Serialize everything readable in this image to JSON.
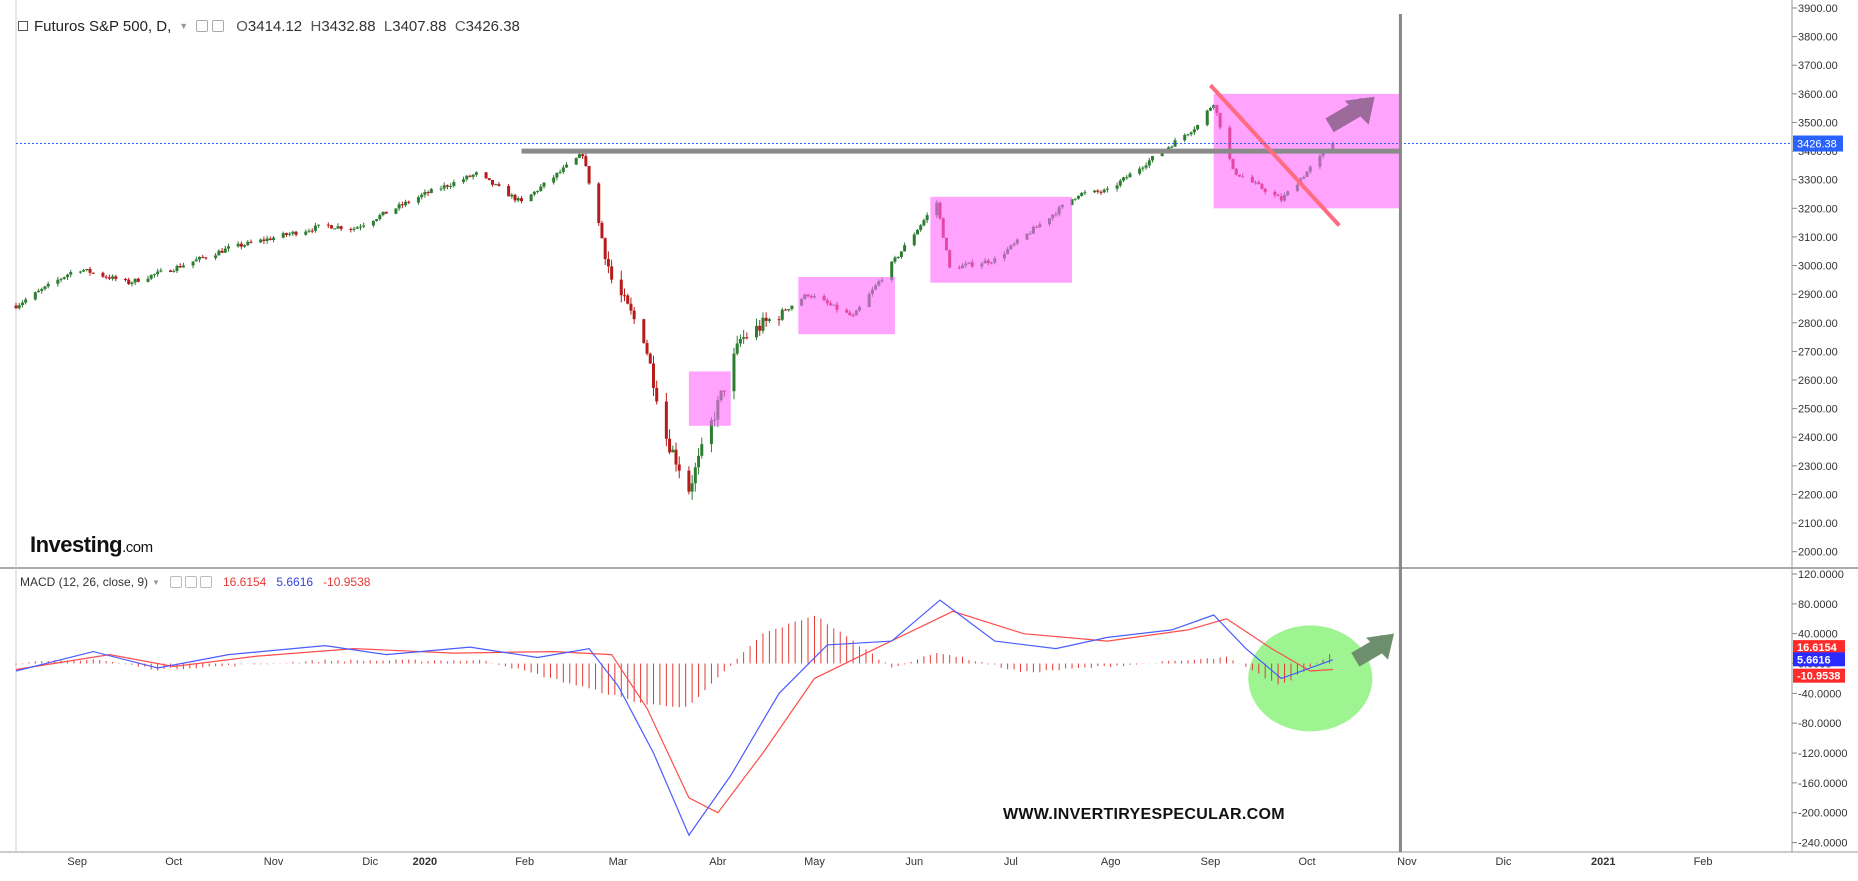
{
  "header": {
    "symbol": "Futuros S&P 500, D,",
    "open_label": "O",
    "open": "3414.12",
    "high_label": "H",
    "high": "3432.88",
    "low_label": "L",
    "low": "3407.88",
    "close_label": "C",
    "close": "3426.38"
  },
  "macd_header": {
    "label": "MACD (12, 26, close, 9)",
    "value_red": "16.6154",
    "value_blue": "5.6616",
    "value_red2": "-10.9538"
  },
  "brand": {
    "name": "Investing",
    "domain": ".com"
  },
  "watermark": "WWW.INVERTIRYESPECULAR.COM",
  "colors": {
    "up": "#2e7d32",
    "down": "#b71c1c",
    "macd_line": "#4a5cff",
    "signal_line": "#ff4d4d",
    "histogram": "#e53935",
    "price_tag": "#2962ff",
    "box": "#ff66ff",
    "trendline": "#ff6b81",
    "arrow": "#9c6b9c",
    "circle": "#7cf06b"
  },
  "chart_data": [
    {
      "type": "candlestick",
      "title": "",
      "ylim": [
        1950,
        3900
      ],
      "yticks": [
        "3900.00",
        "3800.00",
        "3700.00",
        "3600.00",
        "3500.00",
        "3400.00",
        "3300.00",
        "3200.00",
        "3100.00",
        "3000.00",
        "2900.00",
        "2800.00",
        "2700.00",
        "2600.00",
        "2500.00",
        "2400.00",
        "2300.00",
        "2200.00",
        "2100.00",
        "2000.00"
      ],
      "last_price_tag": "3426.38",
      "resistance_level": 3400,
      "x_months": [
        "Sep",
        "Oct",
        "Nov",
        "Dic",
        "2020",
        "Feb",
        "Mar",
        "Abr",
        "May",
        "Jun",
        "Jul",
        "Ago",
        "Sep",
        "Oct",
        "Nov",
        "Dic",
        "2021",
        "Feb"
      ],
      "closing_path": [
        {
          "x": "2019-08-27",
          "y": 2860
        },
        {
          "x": "2019-09-15",
          "y": 2990
        },
        {
          "x": "2019-10-01",
          "y": 2940
        },
        {
          "x": "2019-10-15",
          "y": 2990
        },
        {
          "x": "2019-11-01",
          "y": 3060
        },
        {
          "x": "2019-12-01",
          "y": 3140
        },
        {
          "x": "2019-12-10",
          "y": 3130
        },
        {
          "x": "2020-01-01",
          "y": 3250
        },
        {
          "x": "2020-01-17",
          "y": 3320
        },
        {
          "x": "2020-01-31",
          "y": 3220
        },
        {
          "x": "2020-02-19",
          "y": 3390
        },
        {
          "x": "2020-02-28",
          "y": 2950
        },
        {
          "x": "2020-03-09",
          "y": 2750
        },
        {
          "x": "2020-03-16",
          "y": 2400
        },
        {
          "x": "2020-03-23",
          "y": 2220
        },
        {
          "x": "2020-04-08",
          "y": 2740
        },
        {
          "x": "2020-04-29",
          "y": 2900
        },
        {
          "x": "2020-05-13",
          "y": 2820
        },
        {
          "x": "2020-06-08",
          "y": 3220
        },
        {
          "x": "2020-06-12",
          "y": 2990
        },
        {
          "x": "2020-06-26",
          "y": 3020
        },
        {
          "x": "2020-07-22",
          "y": 3250
        },
        {
          "x": "2020-07-31",
          "y": 3260
        },
        {
          "x": "2020-08-28",
          "y": 3490
        },
        {
          "x": "2020-09-02",
          "y": 3570
        },
        {
          "x": "2020-09-08",
          "y": 3330
        },
        {
          "x": "2020-09-23",
          "y": 3230
        },
        {
          "x": "2020-10-09",
          "y": 3426
        }
      ],
      "annotations": {
        "boxes": [
          {
            "from": "2020-03-23",
            "to": "2020-04-05",
            "low": 2440,
            "high": 2630
          },
          {
            "from": "2020-04-26",
            "to": "2020-05-26",
            "low": 2760,
            "high": 2960
          },
          {
            "from": "2020-06-06",
            "to": "2020-07-20",
            "low": 2940,
            "high": 3240
          },
          {
            "from": "2020-09-02",
            "to": "2020-10-30",
            "low": 3200,
            "high": 3600
          }
        ],
        "resistance_line": {
          "from": "2020-01-31",
          "to": "2020-10-30",
          "y": 3400
        },
        "trendline": {
          "from": "2020-09-01",
          "y1": 3630,
          "to": "2020-10-11",
          "y2": 3140
        },
        "arrow": {
          "from": "2020-10-08",
          "y1": 3490,
          "to": "2020-10-22",
          "y2": 3590
        },
        "vertical_line": {
          "x": "2020-10-30"
        }
      }
    },
    {
      "type": "line",
      "title": "MACD (12, 26, close, 9)",
      "ylim": [
        -250,
        120
      ],
      "yticks": [
        "120.0000",
        "80.0000",
        "40.0000",
        "0.0000",
        "-40.0000",
        "-80.0000",
        "-120.0000",
        "-160.0000",
        "-200.0000",
        "-240.0000"
      ],
      "series": [
        {
          "name": "MACD",
          "points": [
            {
              "x": "2019-08-27",
              "y": -10
            },
            {
              "x": "2019-09-20",
              "y": 16
            },
            {
              "x": "2019-10-10",
              "y": -6
            },
            {
              "x": "2019-11-01",
              "y": 12
            },
            {
              "x": "2019-12-01",
              "y": 24
            },
            {
              "x": "2019-12-20",
              "y": 12
            },
            {
              "x": "2020-01-15",
              "y": 22
            },
            {
              "x": "2020-02-05",
              "y": 8
            },
            {
              "x": "2020-02-21",
              "y": 20
            },
            {
              "x": "2020-03-01",
              "y": -30
            },
            {
              "x": "2020-03-12",
              "y": -120
            },
            {
              "x": "2020-03-23",
              "y": -230
            },
            {
              "x": "2020-04-05",
              "y": -150
            },
            {
              "x": "2020-04-20",
              "y": -40
            },
            {
              "x": "2020-05-05",
              "y": 25
            },
            {
              "x": "2020-05-25",
              "y": 30
            },
            {
              "x": "2020-06-09",
              "y": 85
            },
            {
              "x": "2020-06-26",
              "y": 30
            },
            {
              "x": "2020-07-15",
              "y": 20
            },
            {
              "x": "2020-07-31",
              "y": 35
            },
            {
              "x": "2020-08-20",
              "y": 45
            },
            {
              "x": "2020-09-02",
              "y": 65
            },
            {
              "x": "2020-09-12",
              "y": 20
            },
            {
              "x": "2020-09-23",
              "y": -20
            },
            {
              "x": "2020-10-09",
              "y": 5
            }
          ]
        },
        {
          "name": "Signal",
          "points": [
            {
              "x": "2019-08-27",
              "y": -8
            },
            {
              "x": "2019-09-25",
              "y": 12
            },
            {
              "x": "2019-10-15",
              "y": -4
            },
            {
              "x": "2019-11-10",
              "y": 10
            },
            {
              "x": "2019-12-10",
              "y": 20
            },
            {
              "x": "2020-01-10",
              "y": 14
            },
            {
              "x": "2020-02-10",
              "y": 16
            },
            {
              "x": "2020-02-28",
              "y": 12
            },
            {
              "x": "2020-03-10",
              "y": -60
            },
            {
              "x": "2020-03-23",
              "y": -180
            },
            {
              "x": "2020-04-01",
              "y": -200
            },
            {
              "x": "2020-04-15",
              "y": -120
            },
            {
              "x": "2020-05-01",
              "y": -20
            },
            {
              "x": "2020-05-20",
              "y": 20
            },
            {
              "x": "2020-06-13",
              "y": 70
            },
            {
              "x": "2020-07-05",
              "y": 40
            },
            {
              "x": "2020-07-31",
              "y": 30
            },
            {
              "x": "2020-08-25",
              "y": 45
            },
            {
              "x": "2020-09-06",
              "y": 60
            },
            {
              "x": "2020-09-20",
              "y": 20
            },
            {
              "x": "2020-10-02",
              "y": -10
            },
            {
              "x": "2020-10-09",
              "y": -8
            }
          ]
        }
      ],
      "histogram": [
        {
          "x": "2019-09-20",
          "y": 6
        },
        {
          "x": "2019-10-10",
          "y": -8
        },
        {
          "x": "2019-12-01",
          "y": 4
        },
        {
          "x": "2020-01-20",
          "y": 4
        },
        {
          "x": "2020-03-10",
          "y": -55
        },
        {
          "x": "2020-03-23",
          "y": -58
        },
        {
          "x": "2020-04-15",
          "y": 40
        },
        {
          "x": "2020-05-01",
          "y": 65
        },
        {
          "x": "2020-05-25",
          "y": -5
        },
        {
          "x": "2020-06-09",
          "y": 15
        },
        {
          "x": "2020-07-05",
          "y": -12
        },
        {
          "x": "2020-09-06",
          "y": 8
        },
        {
          "x": "2020-09-23",
          "y": -30
        },
        {
          "x": "2020-10-09",
          "y": 15
        }
      ],
      "value_tags": [
        "16.6154",
        "5.6616",
        "-10.9538"
      ]
    }
  ]
}
